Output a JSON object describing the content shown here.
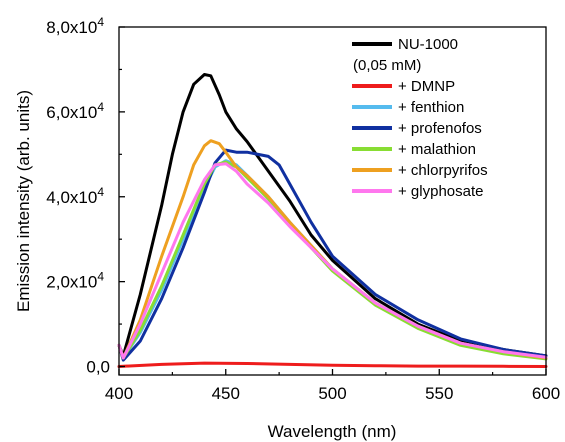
{
  "chart_data": {
    "type": "line",
    "title": "",
    "xlabel": "Wavelength (nm)",
    "ylabel": "Emission intensity (arb. units)",
    "xlim": [
      400,
      600
    ],
    "ylim": [
      -2000,
      80000
    ],
    "x_ticks": [
      400,
      450,
      500,
      550,
      600
    ],
    "y_ticks": [
      {
        "value": 0,
        "label": "0,0"
      },
      {
        "value": 20000,
        "label": "2,0x10",
        "exp": "4"
      },
      {
        "value": 40000,
        "label": "4,0x10",
        "exp": "4"
      },
      {
        "value": 60000,
        "label": "6,0x10",
        "exp": "4"
      },
      {
        "value": 80000,
        "label": "8,0x10",
        "exp": "4"
      }
    ],
    "grid": false,
    "legend_position": "top-right",
    "series": [
      {
        "name": "NU-1000",
        "name_line2": "(0,05 mM)",
        "color": "#000000",
        "x": [
          400,
          402,
          410,
          420,
          425,
          430,
          435,
          440,
          443,
          447,
          450,
          455,
          460,
          470,
          480,
          490,
          500,
          520,
          540,
          560,
          580,
          600
        ],
        "y": [
          5000,
          2500,
          17000,
          38000,
          50000,
          60000,
          66500,
          68800,
          68500,
          64000,
          60000,
          56000,
          53000,
          46000,
          39000,
          31000,
          25000,
          16000,
          10000,
          6000,
          4000,
          2500
        ]
      },
      {
        "name": "+ DMNP",
        "color": "#ee1c1c",
        "x": [
          400,
          420,
          440,
          460,
          480,
          500,
          520,
          540,
          560,
          580,
          600
        ],
        "y": [
          0,
          500,
          800,
          700,
          500,
          300,
          200,
          100,
          100,
          50,
          0
        ]
      },
      {
        "name": "+ fenthion",
        "color": "#55bbee",
        "x": [
          400,
          402,
          410,
          420,
          430,
          440,
          445,
          450,
          455,
          460,
          470,
          480,
          500,
          520,
          540,
          560,
          580,
          600
        ],
        "y": [
          5000,
          2000,
          8000,
          18000,
          30000,
          42000,
          47000,
          48500,
          47500,
          45000,
          40000,
          34000,
          23000,
          15000,
          9500,
          5500,
          3500,
          2000
        ]
      },
      {
        "name": "+ profenofos",
        "color": "#1030a0",
        "x": [
          400,
          402,
          410,
          420,
          430,
          440,
          445,
          450,
          455,
          460,
          470,
          475,
          480,
          490,
          500,
          520,
          540,
          560,
          580,
          600
        ],
        "y": [
          5000,
          1500,
          6000,
          16000,
          28000,
          41000,
          48000,
          51000,
          50500,
          50500,
          49500,
          47500,
          43000,
          34000,
          26000,
          17000,
          11000,
          6500,
          4000,
          2500
        ]
      },
      {
        "name": "+ malathion",
        "color": "#88dd33",
        "x": [
          400,
          402,
          410,
          420,
          430,
          440,
          445,
          450,
          455,
          460,
          470,
          480,
          500,
          520,
          540,
          560,
          580,
          600
        ],
        "y": [
          5000,
          2000,
          8500,
          19000,
          31000,
          43000,
          47500,
          48200,
          47000,
          44500,
          39500,
          33500,
          22500,
          14500,
          9000,
          5000,
          3000,
          1800
        ]
      },
      {
        "name": "+ chlorpyrifos",
        "color": "#eea020",
        "x": [
          400,
          402,
          410,
          420,
          430,
          435,
          440,
          443,
          447,
          450,
          455,
          460,
          470,
          480,
          500,
          520,
          540,
          560,
          580,
          600
        ],
        "y": [
          5000,
          2000,
          11000,
          26000,
          40000,
          47500,
          52000,
          53200,
          52500,
          50500,
          47000,
          45000,
          40000,
          34000,
          23000,
          15000,
          9500,
          5500,
          3500,
          2000
        ]
      },
      {
        "name": "+ glyphosate",
        "color": "#ff77ee",
        "x": [
          400,
          402,
          410,
          420,
          430,
          440,
          445,
          450,
          455,
          460,
          470,
          480,
          500,
          520,
          540,
          560,
          580,
          600
        ],
        "y": [
          5000,
          2000,
          10000,
          22000,
          34000,
          44000,
          47500,
          47800,
          46000,
          43000,
          38500,
          33000,
          23000,
          15000,
          9500,
          5500,
          3500,
          2200
        ]
      }
    ]
  }
}
